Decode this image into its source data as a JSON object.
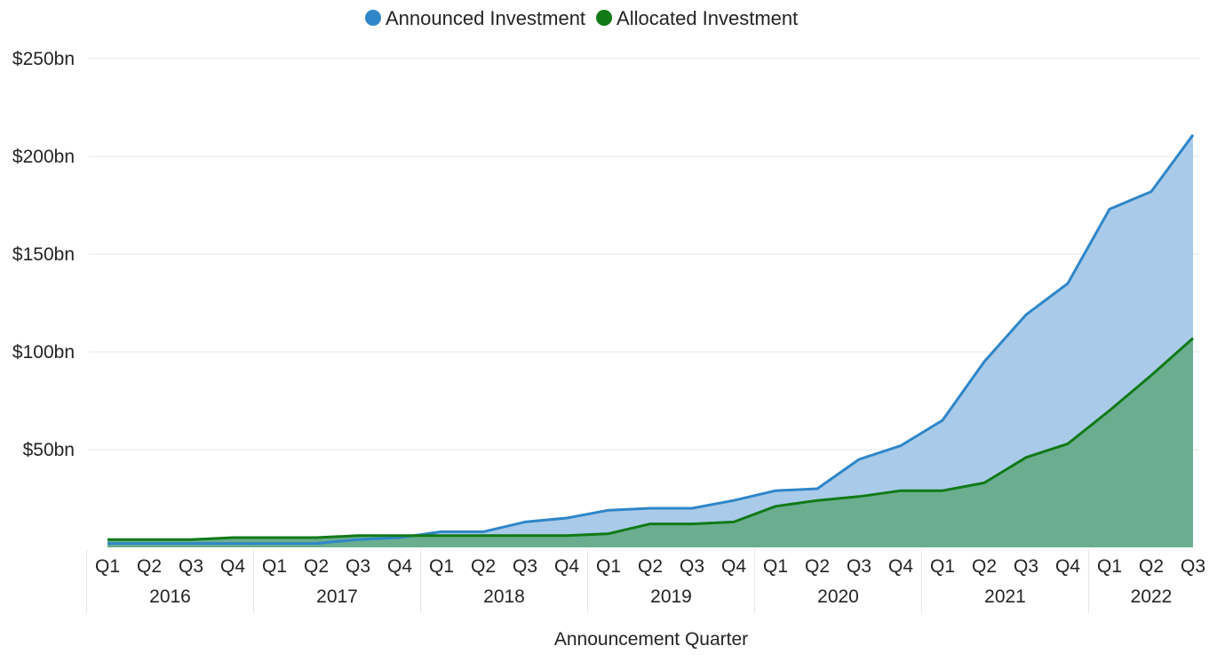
{
  "chart_data": {
    "type": "area",
    "xlabel": "Announcement Quarter",
    "ylabel": "",
    "ylim": [
      0,
      250
    ],
    "yticks": [
      {
        "value": 50,
        "label": "$50bn"
      },
      {
        "value": 100,
        "label": "$100bn"
      },
      {
        "value": 150,
        "label": "$150bn"
      },
      {
        "value": 200,
        "label": "$200bn"
      },
      {
        "value": 250,
        "label": "$250bn"
      }
    ],
    "grid": true,
    "legend_position": "top-center",
    "years": [
      {
        "label": "2016",
        "quarters": [
          "Q1",
          "Q2",
          "Q3",
          "Q4"
        ]
      },
      {
        "label": "2017",
        "quarters": [
          "Q1",
          "Q2",
          "Q3",
          "Q4"
        ]
      },
      {
        "label": "2018",
        "quarters": [
          "Q1",
          "Q2",
          "Q3",
          "Q4"
        ]
      },
      {
        "label": "2019",
        "quarters": [
          "Q1",
          "Q2",
          "Q3",
          "Q4"
        ]
      },
      {
        "label": "2020",
        "quarters": [
          "Q1",
          "Q2",
          "Q3",
          "Q4"
        ]
      },
      {
        "label": "2021",
        "quarters": [
          "Q1",
          "Q2",
          "Q3",
          "Q4"
        ]
      },
      {
        "label": "2022",
        "quarters": [
          "Q1",
          "Q2",
          "Q3"
        ]
      }
    ],
    "series": [
      {
        "name": "Announced Investment",
        "color": "#2f86c8",
        "fill": "#a9cbe9",
        "values": [
          2,
          2,
          2,
          2,
          2,
          2,
          4,
          5,
          8,
          8,
          13,
          15,
          19,
          20,
          20,
          24,
          29,
          30,
          45,
          52,
          65,
          95,
          119,
          135,
          173,
          182,
          211
        ]
      },
      {
        "name": "Allocated Investment",
        "color": "#117a17",
        "fill": "#6aae8f",
        "values": [
          4,
          4,
          4,
          5,
          5,
          5,
          6,
          6,
          6,
          6,
          6,
          6,
          7,
          12,
          12,
          13,
          21,
          24,
          26,
          29,
          29,
          33,
          46,
          53,
          70,
          88,
          107
        ]
      }
    ]
  }
}
